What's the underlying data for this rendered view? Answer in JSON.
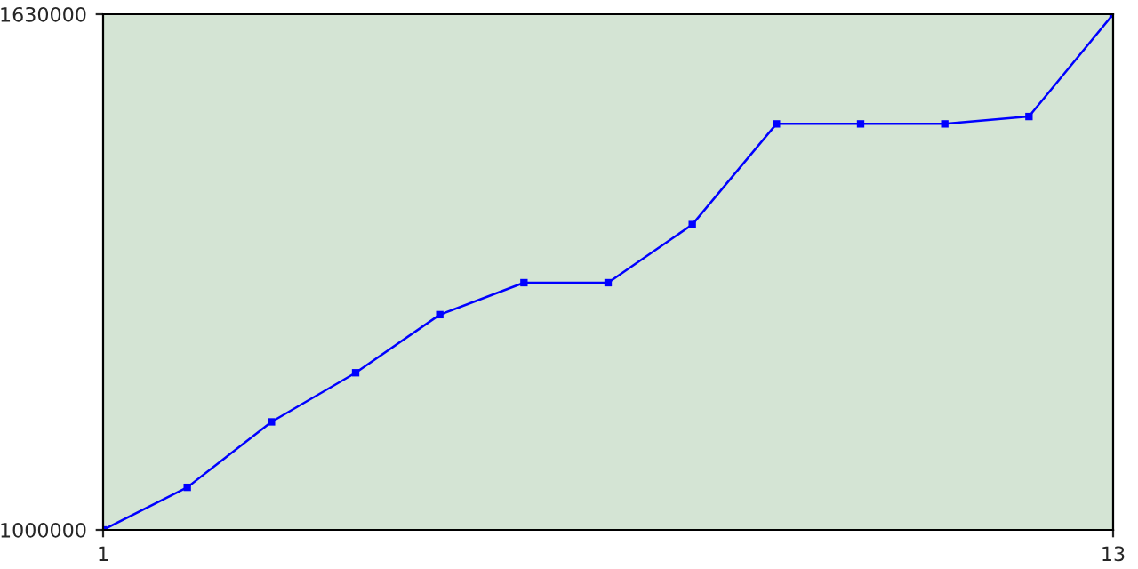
{
  "chart_data": {
    "type": "line",
    "x": [
      1,
      2,
      3,
      4,
      5,
      6,
      7,
      8,
      9,
      10,
      11,
      12,
      13
    ],
    "series": [
      {
        "color": "#0000ff",
        "values": [
          1000000,
          1052000,
          1132000,
          1192000,
          1263000,
          1302000,
          1302000,
          1373000,
          1496000,
          1496000,
          1496000,
          1505000,
          1630000
        ]
      }
    ],
    "xlim": [
      1,
      13
    ],
    "xticks": [
      1,
      13
    ],
    "ylim": [
      1000000,
      1630000
    ],
    "yticks": [
      1000000,
      1630000
    ],
    "marker": "square",
    "line_style": "solid"
  }
}
